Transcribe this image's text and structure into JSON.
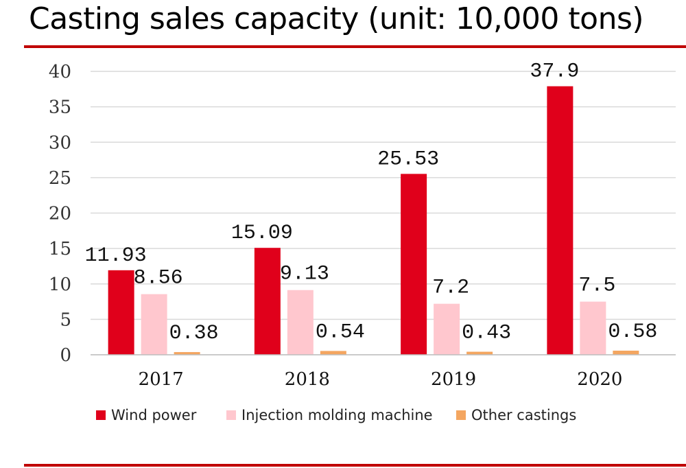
{
  "title": "Casting sales capacity (unit: 10,000 tons)",
  "colors": {
    "accent_rule": "#c00000",
    "wind": "#e0001b",
    "injection": "#ffc7ce",
    "other": "#f4a660",
    "grid": "#d9d9d9"
  },
  "chart_data": {
    "type": "bar",
    "categories": [
      "2017",
      "2018",
      "2019",
      "2020"
    ],
    "series": [
      {
        "name": "Wind power",
        "values": [
          11.93,
          15.09,
          25.53,
          37.9
        ],
        "labels": [
          "11.93",
          "15.09",
          "25.53",
          "37.9"
        ]
      },
      {
        "name": "Injection molding machine",
        "values": [
          8.56,
          9.13,
          7.2,
          7.5
        ],
        "labels": [
          "8.56",
          "9.13",
          "7.2",
          "7.5"
        ]
      },
      {
        "name": "Other castings",
        "values": [
          0.38,
          0.54,
          0.43,
          0.58
        ],
        "labels": [
          "0.38",
          "0.54",
          "0.43",
          "0.58"
        ]
      }
    ],
    "ylim": [
      0,
      40
    ],
    "yticks": [
      "0",
      "5",
      "10",
      "15",
      "20",
      "25",
      "30",
      "35",
      "40"
    ],
    "grid": true,
    "legend_position": "bottom"
  }
}
